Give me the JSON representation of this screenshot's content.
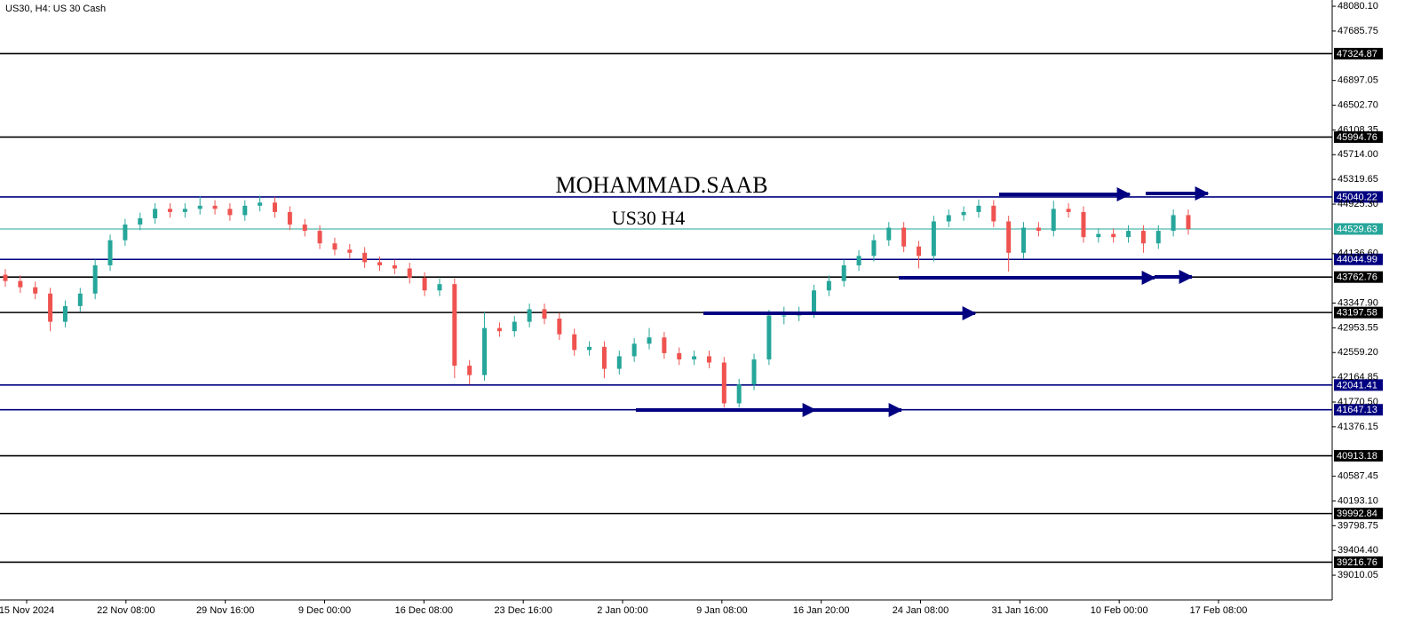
{
  "chart_data": {
    "type": "candlestick",
    "title": "US30, H4:  US 30 Cash",
    "annotations": [
      "MOHAMMAD.SAAB",
      "US30 H4"
    ],
    "up_color": "#26a69a",
    "down_color": "#ef5350",
    "grid": false,
    "ylim": [
      38700,
      48180
    ],
    "yticks": [
      {
        "value": 48080.1,
        "label": "48080.10"
      },
      47685.75,
      46897.05,
      {
        "value": 46502.7,
        "label": "46502.70"
      },
      46108.35,
      {
        "value": 45714.0,
        "label": "45714.00"
      },
      45319.65,
      {
        "value": 44925.3,
        "label": "44925.30"
      },
      {
        "value": 44136.6,
        "label": "44136.60"
      },
      {
        "value": 43347.9,
        "label": "43347.90"
      },
      42953.55,
      {
        "value": 42559.2,
        "label": "42559.20"
      },
      42164.85,
      {
        "value": 41770.5,
        "label": "41770.50"
      },
      41376.15,
      40587.45,
      {
        "value": 40193.1,
        "label": "40193.10"
      },
      39798.75,
      {
        "value": 39404.4,
        "label": "39404.40"
      },
      39010.05
    ],
    "x_labels": [
      "15 Nov 2024",
      "22 Nov 08:00",
      "29 Nov 16:00",
      "9 Dec 00:00",
      "16 Dec 08:00",
      "23 Dec 16:00",
      "2 Jan 00:00",
      "9 Jan 08:00",
      "16 Jan 20:00",
      "24 Jan 08:00",
      "31 Jan 16:00",
      "10 Feb 00:00",
      "17 Feb 08:00"
    ],
    "levels": [
      {
        "value": 47324.87,
        "color": "#000000"
      },
      {
        "value": 45994.76,
        "color": "#000000"
      },
      {
        "value": 45040.22,
        "color": "#000080"
      },
      {
        "value": 44529.63,
        "color": "#26a69a"
      },
      {
        "value": 44044.99,
        "color": "#000080"
      },
      {
        "value": 43762.76,
        "color": "#000000"
      },
      {
        "value": 43197.58,
        "color": "#000000"
      },
      {
        "value": 42041.41,
        "color": "#000080"
      },
      {
        "value": 41647.13,
        "color": "#000080"
      },
      {
        "value": 40913.18,
        "color": "#000000"
      },
      {
        "value": 39992.84,
        "color": "#000000"
      },
      {
        "value": 39216.76,
        "color": "#000000"
      }
    ],
    "open": [
      43800,
      43700,
      43600,
      43500,
      43050,
      43300,
      43500,
      43950,
      44350,
      44600,
      44700,
      44850,
      44800,
      44850,
      44900,
      44850,
      44750,
      44900,
      44950,
      44800,
      44600,
      44500,
      44300,
      44200,
      44150,
      44000,
      43950,
      43900,
      43750,
      43550,
      43650,
      42350,
      42200,
      42950,
      42900,
      43050,
      43250,
      43100,
      42850,
      42600,
      42650,
      42300,
      42500,
      42700,
      42800,
      42550,
      42450,
      42500,
      42400,
      41750,
      42050,
      42450,
      43150,
      43150,
      43200,
      43550,
      43700,
      43950,
      44100,
      44350,
      44550,
      44250,
      44100,
      44650,
      44750,
      44800,
      44900,
      44650,
      44150,
      44550,
      44500,
      44850,
      44800,
      44400,
      44450,
      44400,
      44500,
      44300,
      44500,
      44750
    ],
    "high": [
      43890,
      43790,
      43690,
      43590,
      43390,
      43590,
      44040,
      44440,
      44690,
      44790,
      44940,
      44940,
      44940,
      45050,
      44990,
      44940,
      44990,
      45060,
      45040,
      44890,
      44690,
      44590,
      44390,
      44290,
      44240,
      44090,
      44040,
      43990,
      43840,
      43740,
      43740,
      42440,
      43200,
      43040,
      43140,
      43340,
      43340,
      43190,
      42940,
      42740,
      42740,
      42590,
      42790,
      42950,
      42890,
      42640,
      42590,
      42590,
      42490,
      42140,
      42540,
      43240,
      43290,
      43290,
      43640,
      43790,
      44040,
      44190,
      44440,
      44640,
      44640,
      44340,
      44740,
      44840,
      44890,
      45000,
      44990,
      44740,
      44640,
      44640,
      44980,
      44940,
      44890,
      44540,
      44540,
      44590,
      44590,
      44590,
      44840,
      44840
    ],
    "low": [
      43610,
      43510,
      43410,
      42900,
      42960,
      43210,
      43410,
      43860,
      44260,
      44510,
      44610,
      44710,
      44710,
      44760,
      44760,
      44660,
      44660,
      44810,
      44710,
      44510,
      44410,
      44210,
      44110,
      44060,
      43910,
      43860,
      43810,
      43660,
      43460,
      43460,
      42150,
      42050,
      42110,
      42810,
      42810,
      42960,
      43010,
      42760,
      42510,
      42510,
      42150,
      42210,
      42410,
      42610,
      42460,
      42360,
      42360,
      42310,
      41680,
      41680,
      41960,
      42360,
      43010,
      43060,
      43110,
      43460,
      43610,
      43860,
      44010,
      44260,
      44160,
      43900,
      44010,
      44560,
      44660,
      44710,
      44560,
      43850,
      44060,
      44410,
      44410,
      44710,
      44310,
      44310,
      44310,
      44310,
      44150,
      44210,
      44410,
      44440
    ],
    "close": [
      43700,
      43600,
      43500,
      43050,
      43300,
      43500,
      43950,
      44350,
      44600,
      44700,
      44850,
      44800,
      44850,
      44900,
      44850,
      44750,
      44900,
      44950,
      44800,
      44600,
      44500,
      44300,
      44200,
      44150,
      44000,
      43950,
      43900,
      43750,
      43550,
      43650,
      42350,
      42200,
      42950,
      42900,
      43050,
      43250,
      43100,
      42850,
      42600,
      42650,
      42300,
      42500,
      42700,
      42800,
      42550,
      42450,
      42500,
      42400,
      41750,
      42050,
      42450,
      43150,
      43150,
      43200,
      43550,
      43700,
      43950,
      44100,
      44350,
      44550,
      44250,
      44100,
      44650,
      44750,
      44800,
      44900,
      44650,
      44150,
      44550,
      44500,
      44850,
      44800,
      44400,
      44450,
      44400,
      44500,
      44300,
      44500,
      44750,
      44530
    ]
  }
}
